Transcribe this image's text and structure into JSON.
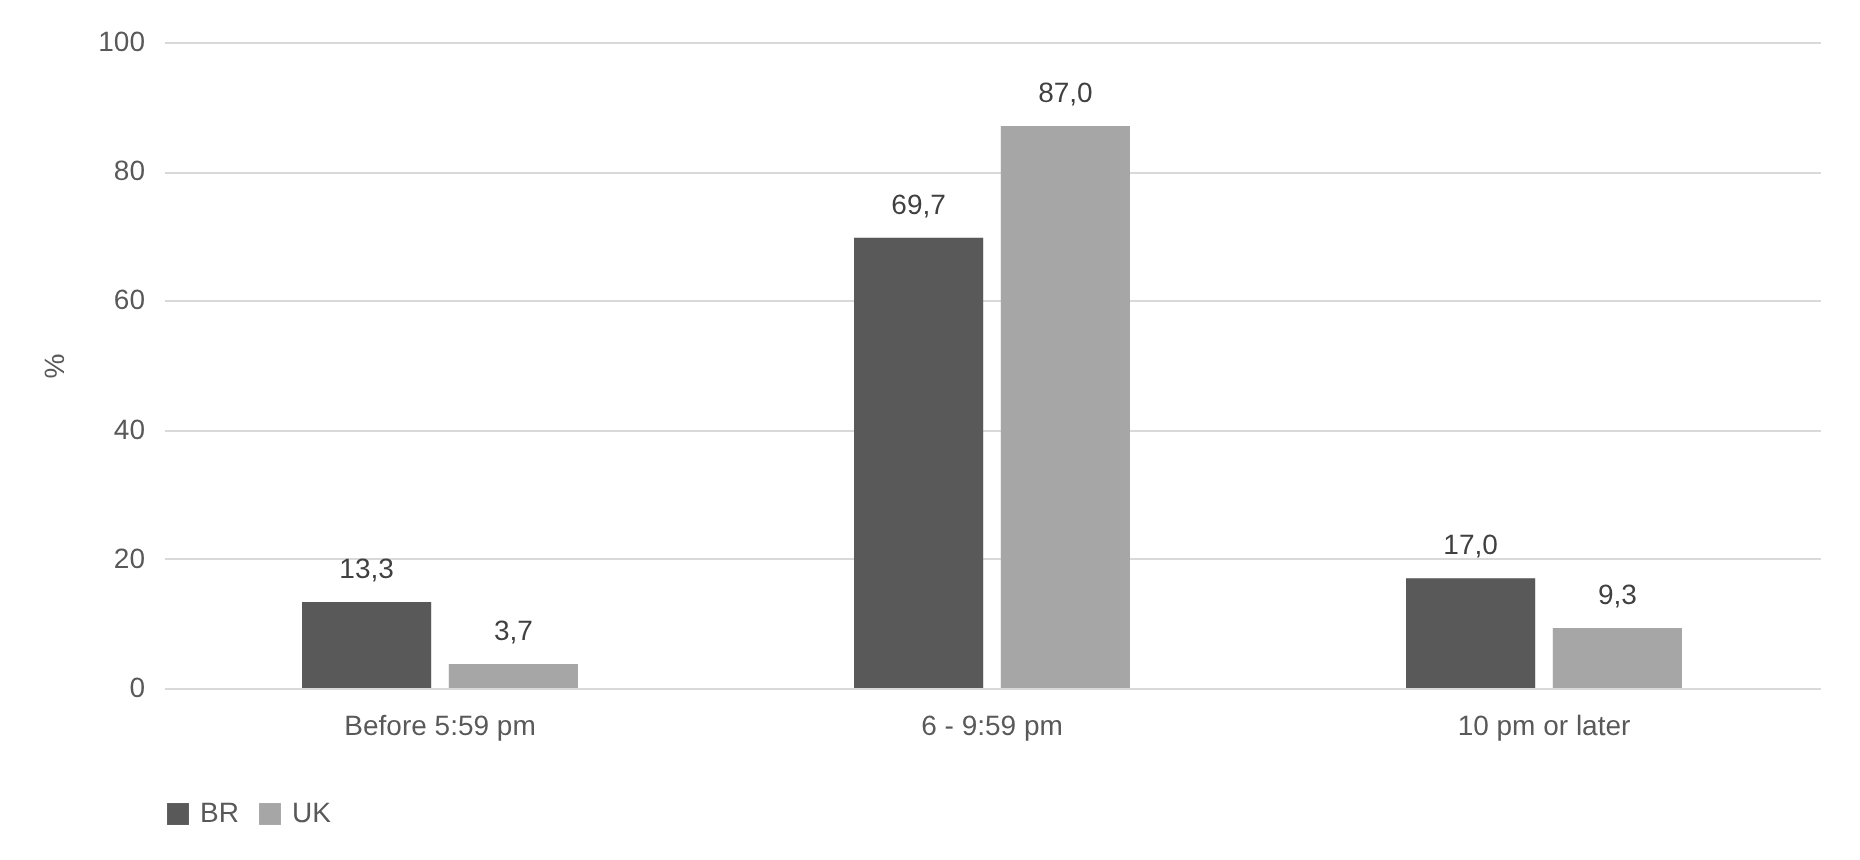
{
  "chart_data": {
    "type": "bar",
    "ylabel": "%",
    "categories": [
      "Before 5:59 pm",
      "6 - 9:59 pm",
      "10 pm or later"
    ],
    "series": [
      {
        "name": "BR",
        "color": "#595959",
        "values": [
          13.3,
          69.7,
          17.0
        ],
        "value_labels": [
          "13,3",
          "69,7",
          "17,0"
        ]
      },
      {
        "name": "UK",
        "color": "#a6a6a6",
        "values": [
          3.7,
          87.0,
          9.3
        ],
        "value_labels": [
          "3,7",
          "87,0",
          "9,3"
        ]
      }
    ],
    "ylim": [
      0,
      100
    ],
    "yticks": [
      0,
      20,
      40,
      60,
      80,
      100
    ],
    "grid": "y",
    "legend": "bottom"
  }
}
